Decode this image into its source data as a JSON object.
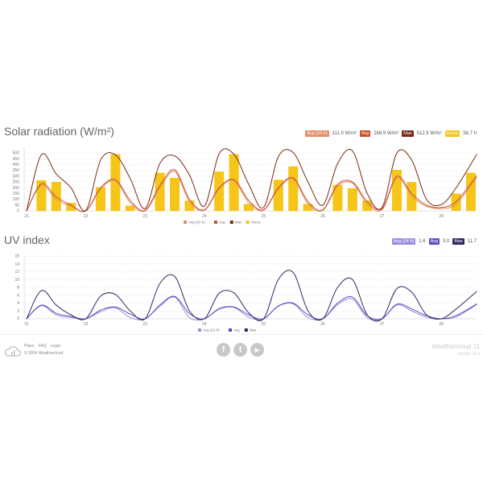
{
  "solar": {
    "title": "Solar radiation (W/m²)",
    "summary": [
      {
        "label": "Avg (24 h)",
        "value": "111.0 W/m²",
        "color": "#e0906a"
      },
      {
        "label": "Avg",
        "value": "168.9 W/m²",
        "color": "#c8502a"
      },
      {
        "label": "Max",
        "value": "512.5 W/m²",
        "color": "#7a2a14"
      },
      {
        "label": "Hours",
        "value": "58.7 h",
        "color": "#f5c518"
      }
    ]
  },
  "uv": {
    "title": "UV index",
    "summary": [
      {
        "label": "Avg (24 h)",
        "value": "1.6",
        "color": "#9a8ee0"
      },
      {
        "label": "Avg",
        "value": "3.0",
        "color": "#5a4cc0"
      },
      {
        "label": "Max",
        "value": "11.7",
        "color": "#2e2a60"
      }
    ]
  },
  "chart_data": [
    {
      "type": "line+bar",
      "title": "Solar radiation (W/m²)",
      "x_ticks": [
        "21",
        "22",
        "23",
        "24",
        "25",
        "26",
        "27",
        "28"
      ],
      "y_ticks": [
        0,
        50,
        100,
        150,
        200,
        250,
        300,
        350,
        400,
        450,
        500
      ],
      "ylim": [
        0,
        550
      ],
      "grid": true,
      "legend": "bottom",
      "series": [
        {
          "name": "Avg (24 h)",
          "type": "line",
          "color": "#e0906a",
          "x": [
            21,
            21.25,
            21.5,
            21.75,
            22,
            22.25,
            22.5,
            22.75,
            23,
            23.25,
            23.5,
            23.75,
            24,
            24.25,
            24.5,
            24.75,
            25,
            25.25,
            25.5,
            25.75,
            26,
            26.25,
            26.5,
            26.75,
            27,
            27.25,
            27.5,
            27.75,
            28,
            28.25,
            28.6
          ],
          "values": [
            0,
            220,
            100,
            40,
            0,
            190,
            260,
            70,
            0,
            200,
            340,
            80,
            5,
            190,
            260,
            70,
            5,
            190,
            275,
            60,
            5,
            215,
            240,
            60,
            10,
            285,
            130,
            40,
            20,
            60,
            290
          ]
        },
        {
          "name": "Avg",
          "type": "line",
          "color": "#c8502a",
          "x": [
            21,
            21.25,
            21.5,
            21.75,
            22,
            22.25,
            22.5,
            22.75,
            23,
            23.25,
            23.5,
            23.75,
            24,
            24.25,
            24.5,
            24.75,
            25,
            25.25,
            25.5,
            25.75,
            26,
            26.25,
            26.5,
            26.75,
            27,
            27.25,
            27.5,
            27.75,
            28,
            28.25,
            28.6
          ],
          "values": [
            0,
            235,
            120,
            50,
            0,
            200,
            270,
            90,
            5,
            220,
            355,
            100,
            10,
            200,
            270,
            90,
            10,
            200,
            285,
            80,
            10,
            230,
            250,
            80,
            20,
            300,
            150,
            50,
            30,
            80,
            305
          ]
        },
        {
          "name": "Max",
          "type": "line",
          "color": "#7a2a14",
          "x": [
            21,
            21.25,
            21.5,
            21.75,
            22,
            22.25,
            22.5,
            22.75,
            23,
            23.25,
            23.5,
            23.75,
            24,
            24.25,
            24.5,
            24.75,
            25,
            25.25,
            25.5,
            25.75,
            26,
            26.25,
            26.5,
            26.75,
            27,
            27.25,
            27.5,
            27.75,
            28,
            28.25,
            28.6
          ],
          "values": [
            0,
            485,
            320,
            200,
            5,
            440,
            485,
            280,
            20,
            410,
            475,
            310,
            40,
            495,
            490,
            230,
            30,
            470,
            505,
            250,
            50,
            410,
            520,
            150,
            30,
            500,
            440,
            100,
            55,
            200,
            490
          ]
        },
        {
          "name": "Hours",
          "type": "bar",
          "color": "#f5c518",
          "x": [
            21.25,
            21.5,
            21.75,
            22.25,
            22.5,
            22.75,
            23.25,
            23.5,
            23.75,
            24.25,
            24.5,
            24.75,
            25.25,
            25.5,
            25.75,
            26.25,
            26.5,
            26.75,
            27.25,
            27.5,
            28.25,
            28.5
          ],
          "values": [
            265,
            250,
            70,
            205,
            490,
            45,
            330,
            285,
            90,
            340,
            490,
            60,
            270,
            385,
            60,
            225,
            195,
            90,
            355,
            250,
            150,
            330
          ]
        }
      ]
    },
    {
      "type": "line",
      "title": "UV index",
      "x_ticks": [
        "21",
        "22",
        "23",
        "24",
        "25",
        "26",
        "27",
        "28"
      ],
      "y_ticks": [
        0,
        2,
        4,
        6,
        8,
        10,
        12,
        14,
        16
      ],
      "ylim": [
        0,
        16
      ],
      "grid": true,
      "legend": "bottom",
      "series": [
        {
          "name": "Avg (24 h)",
          "color": "#9a8ee0",
          "x": [
            21,
            21.25,
            21.5,
            21.75,
            22,
            22.25,
            22.5,
            22.75,
            23,
            23.25,
            23.5,
            23.75,
            24,
            24.25,
            24.5,
            24.75,
            25,
            25.25,
            25.5,
            25.75,
            26,
            26.25,
            26.5,
            26.75,
            27,
            27.25,
            27.5,
            27.75,
            28,
            28.25,
            28.6
          ],
          "values": [
            0,
            3.3,
            1,
            0.3,
            0,
            1.8,
            2.8,
            0.3,
            0,
            3.2,
            5.5,
            0.3,
            0,
            2.4,
            2.9,
            0.4,
            0,
            3.2,
            3.8,
            0.3,
            0,
            3.6,
            5,
            0.3,
            0,
            3.5,
            2,
            0.4,
            0,
            0.5,
            3.6
          ]
        },
        {
          "name": "Avg",
          "color": "#5a4cc0",
          "x": [
            21,
            21.25,
            21.5,
            21.75,
            22,
            22.25,
            22.5,
            22.75,
            23,
            23.25,
            23.5,
            23.75,
            24,
            24.25,
            24.5,
            24.75,
            25,
            25.25,
            25.5,
            25.75,
            26,
            26.25,
            26.5,
            26.75,
            27,
            27.25,
            27.5,
            27.75,
            28,
            28.25,
            28.6
          ],
          "values": [
            0,
            3.5,
            1.4,
            0.6,
            0,
            2.2,
            3,
            1.2,
            0,
            3.5,
            5.7,
            1.3,
            0,
            2.6,
            3,
            1,
            0,
            3.3,
            4,
            1,
            0,
            4,
            5.5,
            0.8,
            0,
            3.7,
            2.5,
            0.8,
            0,
            0.8,
            3.8
          ]
        },
        {
          "name": "Max",
          "color": "#2e2a60",
          "x": [
            21,
            21.25,
            21.5,
            21.75,
            22,
            22.25,
            22.5,
            22.75,
            23,
            23.25,
            23.5,
            23.75,
            24,
            24.25,
            24.5,
            24.75,
            25,
            25.25,
            25.5,
            25.75,
            26,
            26.25,
            26.5,
            26.75,
            27,
            27.25,
            27.5,
            27.75,
            28,
            28.25,
            28.6
          ],
          "values": [
            0,
            7.2,
            3.5,
            1,
            0,
            5.8,
            6.2,
            2,
            0,
            9,
            10.8,
            2,
            0,
            6.5,
            6.6,
            1.5,
            0,
            10,
            11.8,
            2,
            0,
            8,
            10,
            1,
            0,
            7.7,
            6.8,
            1,
            0,
            2.5,
            7
          ]
        }
      ]
    }
  ],
  "footer": {
    "links": [
      "Plans",
      "FAQ",
      "Legal"
    ],
    "copyright": "© 2024 Weathercloud",
    "brand": "Weathercloud 11",
    "version": "Version 11.0",
    "social": [
      {
        "icon": "facebook-icon",
        "glyph": "f"
      },
      {
        "icon": "twitter-icon",
        "glyph": "t"
      },
      {
        "icon": "youtube-icon",
        "glyph": "▶"
      }
    ]
  }
}
